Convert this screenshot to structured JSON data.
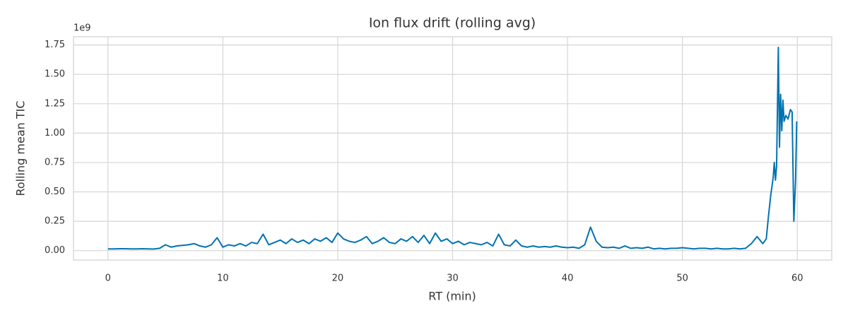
{
  "chart_data": {
    "type": "line",
    "title": "Ion flux drift (rolling avg)",
    "xlabel": "RT (min)",
    "ylabel": "Rolling mean TIC",
    "y_offset_label": "1e9",
    "x": [
      0,
      0.5,
      1,
      1.5,
      2,
      2.5,
      3,
      3.5,
      4,
      4.5,
      5,
      5.5,
      6,
      6.5,
      7,
      7.5,
      8,
      8.5,
      9,
      9.5,
      10,
      10.5,
      11,
      11.5,
      12,
      12.5,
      13,
      13.5,
      14,
      14.5,
      15,
      15.5,
      16,
      16.5,
      17,
      17.5,
      18,
      18.5,
      19,
      19.5,
      20,
      20.5,
      21,
      21.5,
      22,
      22.5,
      23,
      23.5,
      24,
      24.5,
      25,
      25.5,
      26,
      26.5,
      27,
      27.5,
      28,
      28.5,
      29,
      29.5,
      30,
      30.5,
      31,
      31.5,
      32,
      32.5,
      33,
      33.5,
      34,
      34.5,
      35,
      35.5,
      36,
      36.5,
      37,
      37.5,
      38,
      38.5,
      39,
      39.5,
      40,
      40.5,
      41,
      41.5,
      42,
      42.5,
      43,
      43.5,
      44,
      44.5,
      45,
      45.5,
      46,
      46.5,
      47,
      47.5,
      48,
      48.5,
      49,
      49.5,
      50,
      50.5,
      51,
      51.5,
      52,
      52.5,
      53,
      53.5,
      54,
      54.5,
      55,
      55.5,
      56,
      56.5,
      57,
      57.3,
      57.5,
      57.7,
      57.9,
      58,
      58.1,
      58.2,
      58.35,
      58.45,
      58.55,
      58.65,
      58.75,
      58.85,
      59,
      59.2,
      59.4,
      59.55,
      59.7,
      59.85,
      59.95
    ],
    "series": [
      {
        "name": "Rolling mean TIC",
        "color": "#0173b2",
        "values": [
          0.015,
          0.015,
          0.016,
          0.016,
          0.015,
          0.015,
          0.016,
          0.015,
          0.014,
          0.02,
          0.05,
          0.03,
          0.04,
          0.045,
          0.05,
          0.06,
          0.04,
          0.03,
          0.05,
          0.11,
          0.03,
          0.05,
          0.04,
          0.06,
          0.04,
          0.07,
          0.06,
          0.14,
          0.05,
          0.07,
          0.09,
          0.06,
          0.1,
          0.07,
          0.09,
          0.06,
          0.1,
          0.08,
          0.11,
          0.07,
          0.15,
          0.1,
          0.08,
          0.07,
          0.09,
          0.12,
          0.06,
          0.08,
          0.11,
          0.07,
          0.06,
          0.1,
          0.08,
          0.12,
          0.07,
          0.13,
          0.06,
          0.15,
          0.08,
          0.1,
          0.06,
          0.08,
          0.05,
          0.07,
          0.06,
          0.05,
          0.07,
          0.04,
          0.14,
          0.05,
          0.04,
          0.09,
          0.04,
          0.03,
          0.04,
          0.03,
          0.035,
          0.03,
          0.04,
          0.03,
          0.025,
          0.03,
          0.02,
          0.05,
          0.2,
          0.08,
          0.03,
          0.025,
          0.03,
          0.02,
          0.04,
          0.02,
          0.025,
          0.02,
          0.03,
          0.015,
          0.02,
          0.015,
          0.02,
          0.02,
          0.025,
          0.02,
          0.015,
          0.02,
          0.02,
          0.015,
          0.02,
          0.015,
          0.015,
          0.02,
          0.015,
          0.02,
          0.06,
          0.12,
          0.06,
          0.1,
          0.3,
          0.48,
          0.62,
          0.75,
          0.6,
          0.72,
          1.73,
          0.88,
          1.33,
          1.02,
          1.28,
          1.1,
          1.15,
          1.12,
          1.2,
          1.18,
          0.25,
          0.6,
          1.1
        ]
      }
    ],
    "xlim": [
      -3,
      63
    ],
    "ylim": [
      -0.08,
      1.82
    ],
    "xticks": [
      0,
      10,
      20,
      30,
      40,
      50,
      60
    ],
    "yticks": [
      {
        "value": 0,
        "label": "0.00"
      },
      0.25,
      {
        "value": 0.5,
        "label": "0.50"
      },
      0.75,
      {
        "value": 1,
        "label": "1.00"
      },
      1.25,
      {
        "value": 1.5,
        "label": "1.50"
      },
      1.75
    ],
    "grid": true
  }
}
